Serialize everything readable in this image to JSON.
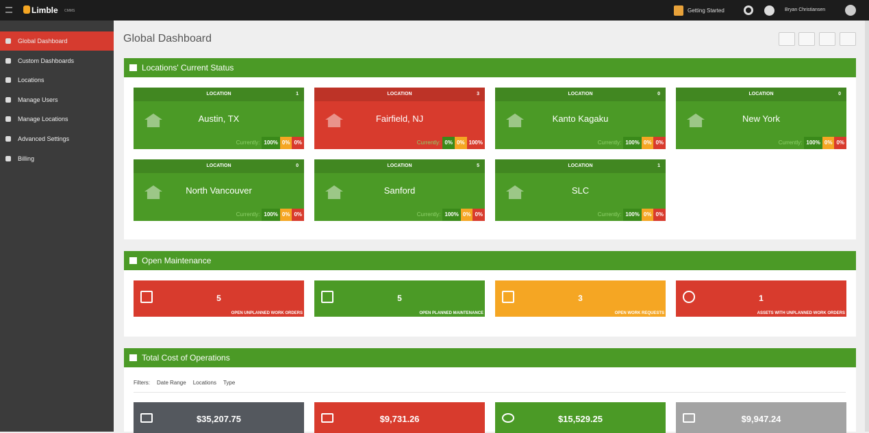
{
  "topbar": {
    "brand": "Limble",
    "brand_sub": "CMMS",
    "getting_started": "Getting Started",
    "user": "Bryan Christiansen"
  },
  "sidebar": {
    "items": [
      "Global Dashboard",
      "Custom Dashboards",
      "Locations",
      "Manage Users",
      "Manage Locations",
      "Advanced Settings",
      "Billing"
    ],
    "active": 0
  },
  "page_title": "Global Dashboard",
  "locations": {
    "title": "Locations' Current Status",
    "card_header": "LOCATION",
    "currently_label": "Currently:",
    "cards": [
      {
        "name": "Austin, TX",
        "count": "1",
        "color": "green",
        "pcts": [
          "100%",
          "0%",
          "0%"
        ]
      },
      {
        "name": "Fairfield, NJ",
        "count": "3",
        "color": "red",
        "pcts": [
          "0%",
          "0%",
          "100%"
        ]
      },
      {
        "name": "Kanto Kagaku",
        "count": "0",
        "color": "green",
        "pcts": [
          "100%",
          "0%",
          "0%"
        ]
      },
      {
        "name": "New York",
        "count": "0",
        "color": "green",
        "pcts": [
          "100%",
          "0%",
          "0%"
        ]
      },
      {
        "name": "North Vancouver",
        "count": "0",
        "color": "green",
        "pcts": [
          "100%",
          "0%",
          "0%"
        ]
      },
      {
        "name": "Sanford",
        "count": "5",
        "color": "green",
        "pcts": [
          "100%",
          "0%",
          "0%"
        ]
      },
      {
        "name": "SLC",
        "count": "1",
        "color": "green",
        "pcts": [
          "100%",
          "0%",
          "0%"
        ]
      }
    ]
  },
  "maintenance": {
    "title": "Open Maintenance",
    "tiles": [
      {
        "value": "5",
        "label": "OPEN UNPLANNED WORK ORDERS",
        "color": "#d83b2d"
      },
      {
        "value": "5",
        "label": "OPEN PLANNED MAINTENANCE",
        "color": "#4b9a26"
      },
      {
        "value": "3",
        "label": "OPEN WORK REQUESTS",
        "color": "#f5a623"
      },
      {
        "value": "1",
        "label": "ASSETS WITH UNPLANNED WORK ORDERS",
        "color": "#d83b2d"
      }
    ]
  },
  "costs": {
    "title": "Total Cost of Operations",
    "filters_label": "Filters:",
    "filters": [
      "Date Range",
      "Locations",
      "Type"
    ],
    "tiles": [
      {
        "value": "$35,207.75",
        "color": "#54585e"
      },
      {
        "value": "$9,731.26",
        "color": "#d83b2d"
      },
      {
        "value": "$15,529.25",
        "color": "#4b9a26"
      },
      {
        "value": "$9,947.24",
        "color": "#a3a3a3"
      }
    ]
  }
}
